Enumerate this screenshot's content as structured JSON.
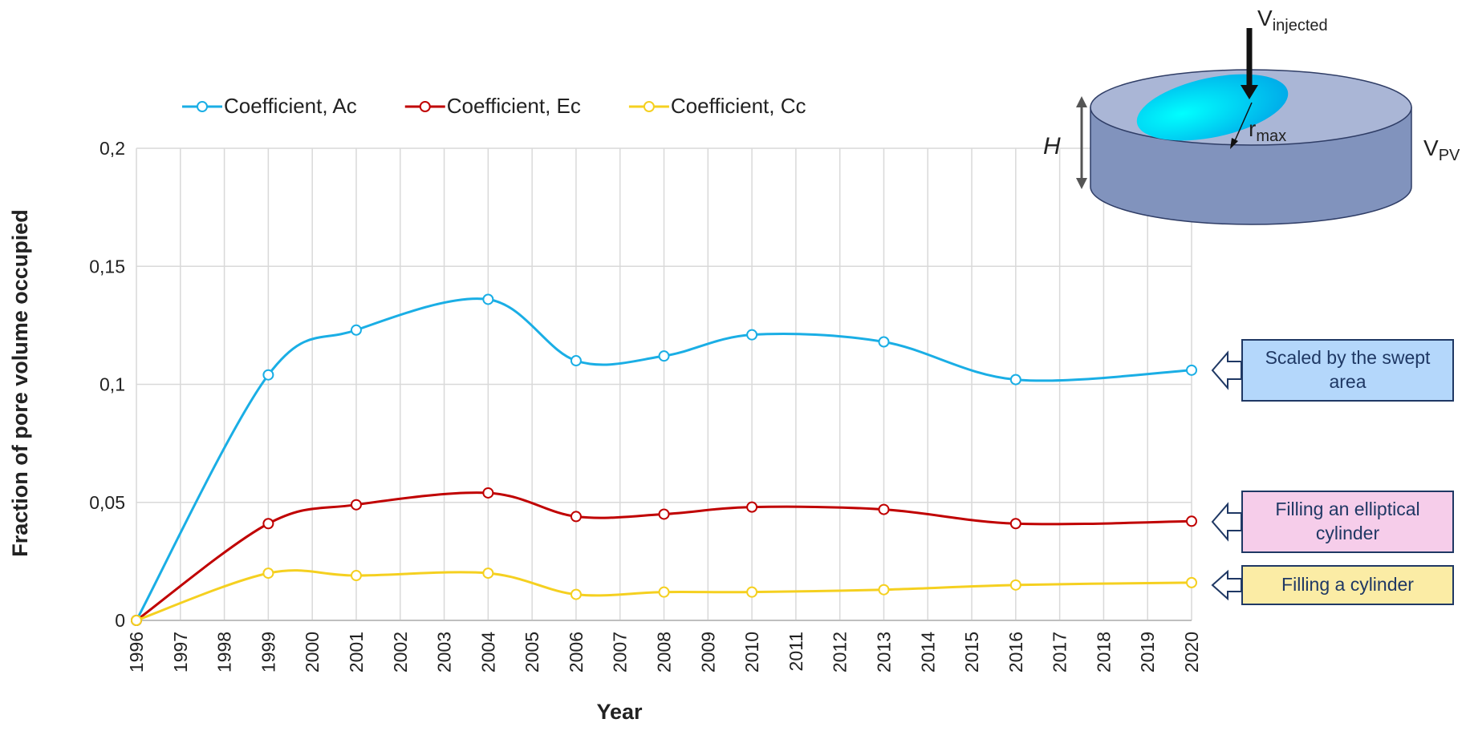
{
  "chart_data": {
    "type": "line",
    "x": [
      1996,
      1999,
      2001,
      2004,
      2006,
      2008,
      2010,
      2013,
      2016,
      2020
    ],
    "series": [
      {
        "name": "Coefficient, Ac",
        "color": "#1aaee5",
        "values": [
          0,
          0.104,
          0.123,
          0.136,
          0.11,
          0.112,
          0.121,
          0.118,
          0.102,
          0.106
        ]
      },
      {
        "name": "Coefficient, Ec",
        "color": "#c00000",
        "values": [
          0,
          0.041,
          0.049,
          0.054,
          0.044,
          0.045,
          0.048,
          0.047,
          0.041,
          0.042
        ]
      },
      {
        "name": "Coefficient, Cc",
        "color": "#f5d020",
        "values": [
          0,
          0.02,
          0.019,
          0.02,
          0.011,
          0.012,
          0.012,
          0.013,
          0.015,
          0.016
        ]
      }
    ],
    "xlim": [
      1996,
      2020
    ],
    "xticks": [
      1996,
      1997,
      1998,
      1999,
      2000,
      2001,
      2002,
      2003,
      2004,
      2005,
      2006,
      2007,
      2008,
      2009,
      2010,
      2011,
      2012,
      2013,
      2014,
      2015,
      2016,
      2017,
      2018,
      2019,
      2020
    ],
    "ylim": [
      0,
      0.2
    ],
    "yticks": [
      0,
      {
        "value": 0.05,
        "label": "0,05"
      },
      {
        "value": 0.1,
        "label": "0,1"
      },
      {
        "value": 0.15,
        "label": "0,15"
      },
      {
        "value": 0.2,
        "label": "0,2"
      }
    ],
    "xlabel": "Year",
    "ylabel": "Fraction of pore volume occupied",
    "grid": true,
    "legend": "top",
    "annotations": [
      "Scaled by the swept area",
      "Filling an elliptical cylinder",
      "Filling a cylinder"
    ]
  },
  "diagram": {
    "v": "V",
    "injected": "injected",
    "r": "r",
    "max": "max",
    "h": "H",
    "v_pv": "V",
    "pv": "PV"
  }
}
